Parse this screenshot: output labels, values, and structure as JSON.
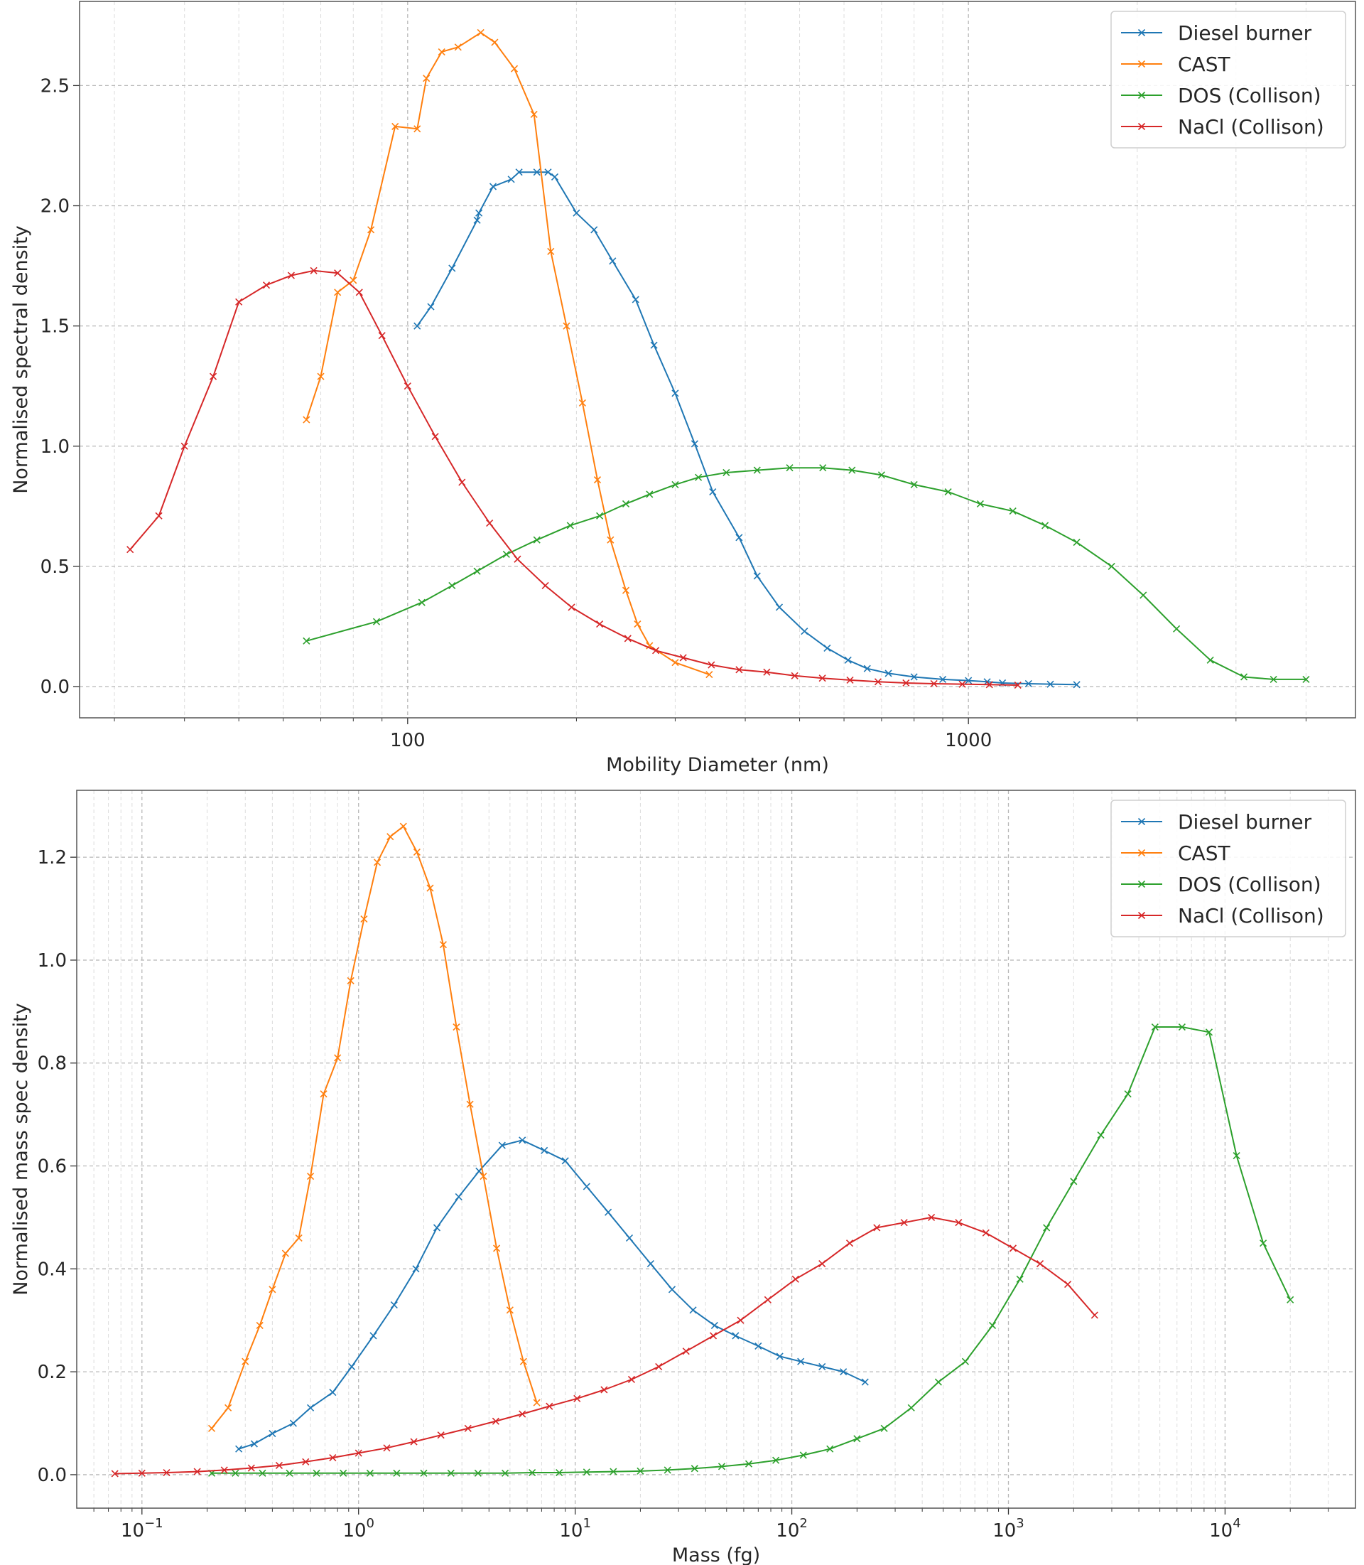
{
  "chart_data": [
    {
      "type": "line",
      "xscale": "log",
      "xlabel": "Mobility Diameter (nm)",
      "ylabel": "Normalised spectral density",
      "xlim": [
        26,
        4900
      ],
      "ylim": [
        -0.13,
        2.85
      ],
      "xticks": [
        {
          "value": 100,
          "label": "100"
        },
        {
          "value": 1000,
          "label": "1000"
        }
      ],
      "yticks": [
        {
          "value": 0.0,
          "label": "0.0"
        },
        {
          "value": 0.5,
          "label": "0.5"
        },
        {
          "value": 1.0,
          "label": "1.0"
        },
        {
          "value": 1.5,
          "label": "1.5"
        },
        {
          "value": 2.0,
          "label": "2.0"
        },
        {
          "value": 2.5,
          "label": "2.5"
        }
      ],
      "grid": true,
      "legend_position": "top-right",
      "series": [
        {
          "name": "Diesel burner",
          "color": "#1f77b4",
          "x": [
            104,
            110,
            120,
            133,
            134,
            142,
            153,
            158,
            170,
            178,
            183,
            200,
            215,
            232,
            255,
            275,
            300,
            325,
            350,
            390,
            420,
            460,
            510,
            560,
            610,
            660,
            720,
            800,
            900,
            1000,
            1080,
            1150,
            1280,
            1400,
            1560
          ],
          "y": [
            1.5,
            1.58,
            1.74,
            1.94,
            1.97,
            2.08,
            2.11,
            2.14,
            2.14,
            2.14,
            2.12,
            1.97,
            1.9,
            1.77,
            1.61,
            1.42,
            1.22,
            1.01,
            0.81,
            0.62,
            0.46,
            0.33,
            0.23,
            0.16,
            0.11,
            0.075,
            0.055,
            0.04,
            0.03,
            0.025,
            0.02,
            0.015,
            0.012,
            0.01,
            0.008
          ]
        },
        {
          "name": "CAST",
          "color": "#ff7f0e",
          "x": [
            66,
            70,
            75,
            80,
            86,
            95,
            104,
            108,
            115,
            123,
            135,
            143,
            155,
            168,
            180,
            192,
            205,
            218,
            230,
            245,
            257,
            270,
            300,
            345
          ],
          "y": [
            1.11,
            1.29,
            1.64,
            1.69,
            1.9,
            2.33,
            2.32,
            2.53,
            2.64,
            2.66,
            2.72,
            2.68,
            2.57,
            2.38,
            1.81,
            1.5,
            1.18,
            0.86,
            0.61,
            0.4,
            0.26,
            0.17,
            0.1,
            0.05
          ]
        },
        {
          "name": "DOS (Collison)",
          "color": "#2ca02c",
          "x": [
            66,
            88,
            106,
            120,
            133,
            150,
            170,
            195,
            220,
            245,
            270,
            300,
            330,
            370,
            420,
            480,
            550,
            620,
            700,
            800,
            920,
            1050,
            1200,
            1370,
            1560,
            1800,
            2050,
            2350,
            2700,
            3100,
            3500,
            4000
          ],
          "y": [
            0.19,
            0.27,
            0.35,
            0.42,
            0.48,
            0.55,
            0.61,
            0.67,
            0.71,
            0.76,
            0.8,
            0.84,
            0.87,
            0.89,
            0.9,
            0.91,
            0.91,
            0.9,
            0.88,
            0.84,
            0.81,
            0.76,
            0.73,
            0.67,
            0.6,
            0.5,
            0.38,
            0.24,
            0.11,
            0.04,
            0.03,
            0.03
          ]
        },
        {
          "name": "NaCl (Collison)",
          "color": "#d62728",
          "x": [
            32,
            36,
            40,
            45,
            50,
            56,
            62,
            68,
            75,
            82,
            90,
            100,
            112,
            125,
            140,
            157,
            176,
            196,
            220,
            247,
            277,
            310,
            348,
            390,
            437,
            490,
            549,
            615,
            690,
            774,
            868,
            975,
            1090,
            1225
          ],
          "y": [
            0.57,
            0.71,
            1.0,
            1.29,
            1.6,
            1.67,
            1.71,
            1.73,
            1.72,
            1.64,
            1.46,
            1.25,
            1.04,
            0.85,
            0.68,
            0.53,
            0.42,
            0.33,
            0.26,
            0.2,
            0.15,
            0.12,
            0.09,
            0.07,
            0.06,
            0.045,
            0.035,
            0.027,
            0.02,
            0.015,
            0.012,
            0.01,
            0.008,
            0.006
          ]
        }
      ]
    },
    {
      "type": "line",
      "xscale": "log",
      "xlabel": "Mass (fg)",
      "ylabel": "Normalised mass spec density",
      "xlim": [
        0.05,
        40000
      ],
      "ylim": [
        -0.065,
        1.33
      ],
      "xticks": [
        {
          "value": 0.1,
          "base": "10",
          "exp": "−1"
        },
        {
          "value": 1,
          "base": "10",
          "exp": "0"
        },
        {
          "value": 10,
          "base": "10",
          "exp": "1"
        },
        {
          "value": 100,
          "base": "10",
          "exp": "2"
        },
        {
          "value": 1000,
          "base": "10",
          "exp": "3"
        },
        {
          "value": 10000,
          "base": "10",
          "exp": "4"
        }
      ],
      "yticks": [
        {
          "value": 0.0,
          "label": "0.0"
        },
        {
          "value": 0.2,
          "label": "0.2"
        },
        {
          "value": 0.4,
          "label": "0.4"
        },
        {
          "value": 0.6,
          "label": "0.6"
        },
        {
          "value": 0.8,
          "label": "0.8"
        },
        {
          "value": 1.0,
          "label": "1.0"
        },
        {
          "value": 1.2,
          "label": "1.2"
        }
      ],
      "grid": true,
      "legend_position": "top-right",
      "series": [
        {
          "name": "Diesel burner",
          "color": "#1f77b4",
          "x": [
            0.28,
            0.33,
            0.4,
            0.5,
            0.6,
            0.76,
            0.93,
            1.17,
            1.46,
            1.84,
            2.3,
            2.9,
            3.6,
            4.6,
            5.7,
            7.2,
            9.0,
            11.3,
            14.2,
            17.8,
            22.3,
            28,
            35,
            44,
            55,
            70,
            88,
            110,
            138,
            173,
            218
          ],
          "y": [
            0.05,
            0.06,
            0.08,
            0.1,
            0.13,
            0.16,
            0.21,
            0.27,
            0.33,
            0.4,
            0.48,
            0.54,
            0.59,
            0.64,
            0.65,
            0.63,
            0.61,
            0.56,
            0.51,
            0.46,
            0.41,
            0.36,
            0.32,
            0.29,
            0.27,
            0.25,
            0.23,
            0.22,
            0.21,
            0.2,
            0.18
          ]
        },
        {
          "name": "CAST",
          "color": "#ff7f0e",
          "x": [
            0.21,
            0.25,
            0.3,
            0.35,
            0.4,
            0.46,
            0.53,
            0.6,
            0.69,
            0.8,
            0.92,
            1.06,
            1.22,
            1.4,
            1.61,
            1.86,
            2.14,
            2.46,
            2.83,
            3.27,
            3.77,
            4.34,
            5.0,
            5.77,
            6.65
          ],
          "y": [
            0.09,
            0.13,
            0.22,
            0.29,
            0.36,
            0.43,
            0.46,
            0.58,
            0.74,
            0.81,
            0.96,
            1.08,
            1.19,
            1.24,
            1.26,
            1.21,
            1.14,
            1.03,
            0.87,
            0.72,
            0.58,
            0.44,
            0.32,
            0.22,
            0.14
          ]
        },
        {
          "name": "DOS (Collison)",
          "color": "#2ca02c",
          "x": [
            0.21,
            0.27,
            0.36,
            0.48,
            0.64,
            0.85,
            1.13,
            1.5,
            2.0,
            2.67,
            3.56,
            4.75,
            6.33,
            8.44,
            11.3,
            15.0,
            20.0,
            26.7,
            35.6,
            47.5,
            63.3,
            84.4,
            113,
            150,
            200,
            267,
            356,
            475,
            633,
            844,
            1130,
            1500,
            2000,
            2670,
            3560,
            4750,
            6330,
            8440,
            11300,
            15000,
            20000
          ],
          "y": [
            0.003,
            0.003,
            0.003,
            0.003,
            0.003,
            0.003,
            0.003,
            0.003,
            0.003,
            0.003,
            0.003,
            0.003,
            0.004,
            0.004,
            0.005,
            0.006,
            0.007,
            0.009,
            0.012,
            0.016,
            0.021,
            0.028,
            0.038,
            0.05,
            0.07,
            0.09,
            0.13,
            0.18,
            0.22,
            0.29,
            0.38,
            0.48,
            0.57,
            0.66,
            0.74,
            0.87,
            0.87,
            0.86,
            0.62,
            0.45,
            0.34
          ]
        },
        {
          "name": "NaCl (Collison)",
          "color": "#d62728",
          "x": [
            0.075,
            0.1,
            0.13,
            0.18,
            0.24,
            0.32,
            0.43,
            0.57,
            0.76,
            1.0,
            1.35,
            1.8,
            2.4,
            3.2,
            4.3,
            5.7,
            7.6,
            10.2,
            13.6,
            18.2,
            24.3,
            32.5,
            43.4,
            58,
            77.5,
            104,
            138,
            185,
            247,
            330,
            441,
            589,
            787,
            1050,
            1400,
            1880,
            2500
          ],
          "y": [
            0.002,
            0.003,
            0.004,
            0.006,
            0.009,
            0.013,
            0.018,
            0.025,
            0.033,
            0.042,
            0.052,
            0.064,
            0.077,
            0.09,
            0.104,
            0.118,
            0.133,
            0.148,
            0.165,
            0.185,
            0.21,
            0.24,
            0.27,
            0.3,
            0.34,
            0.38,
            0.41,
            0.45,
            0.48,
            0.49,
            0.5,
            0.49,
            0.47,
            0.44,
            0.41,
            0.37,
            0.31
          ]
        }
      ]
    }
  ]
}
